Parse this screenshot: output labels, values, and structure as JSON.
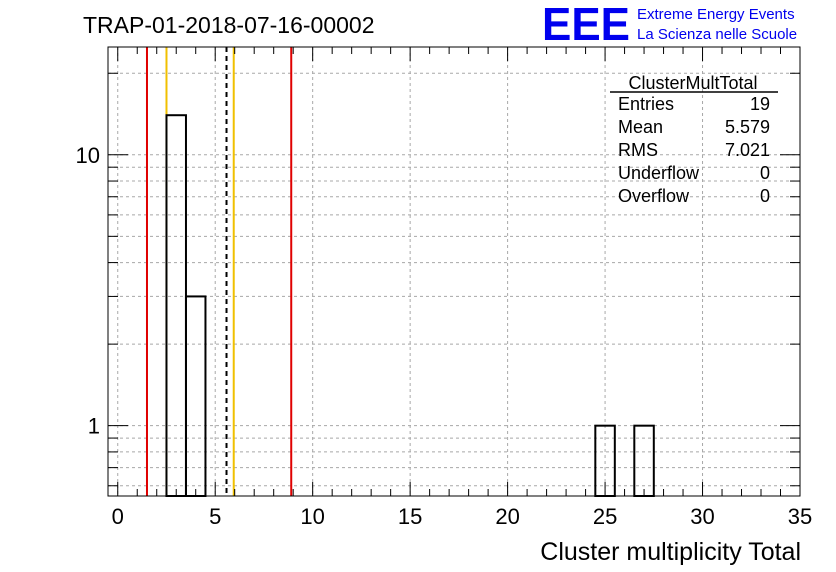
{
  "chart_data": {
    "type": "bar",
    "title": "TRAP-01-2018-07-16-00002",
    "xlabel": "Cluster multiplicity Total",
    "ylabel": "",
    "xlim": [
      -0.5,
      35
    ],
    "ylim": [
      0.55,
      25
    ],
    "yscale": "log",
    "grid": true,
    "x_ticks": [
      "0",
      "5",
      "10",
      "15",
      "20",
      "25",
      "30",
      "35"
    ],
    "y_ticks": [
      "1",
      "10"
    ],
    "bins": [
      {
        "x0": 2.5,
        "x1": 3.5,
        "count": 14
      },
      {
        "x0": 3.5,
        "x1": 4.5,
        "count": 3
      },
      {
        "x0": 24.5,
        "x1": 25.5,
        "count": 1
      },
      {
        "x0": 26.5,
        "x1": 27.5,
        "count": 1
      }
    ],
    "vlines": [
      {
        "x": 1.5,
        "color": "#e00000",
        "style": "solid"
      },
      {
        "x": 2.5,
        "color": "#f0c000",
        "style": "solid"
      },
      {
        "x": 5.58,
        "color": "#000000",
        "style": "dashed"
      },
      {
        "x": 5.95,
        "color": "#f0c000",
        "style": "solid"
      },
      {
        "x": 8.9,
        "color": "#e00000",
        "style": "solid"
      }
    ],
    "stats": {
      "name": "ClusterMultTotal",
      "rows": [
        {
          "label": "Entries",
          "value": "19"
        },
        {
          "label": "Mean",
          "value": "5.579"
        },
        {
          "label": "RMS",
          "value": "7.021"
        },
        {
          "label": "Underflow",
          "value": "0"
        },
        {
          "label": "Overflow",
          "value": "0"
        }
      ]
    }
  },
  "logo": {
    "text": "EEE",
    "line1": "Extreme Energy Events",
    "line2": "La Scienza nelle Scuole",
    "color": "#0000ee"
  }
}
